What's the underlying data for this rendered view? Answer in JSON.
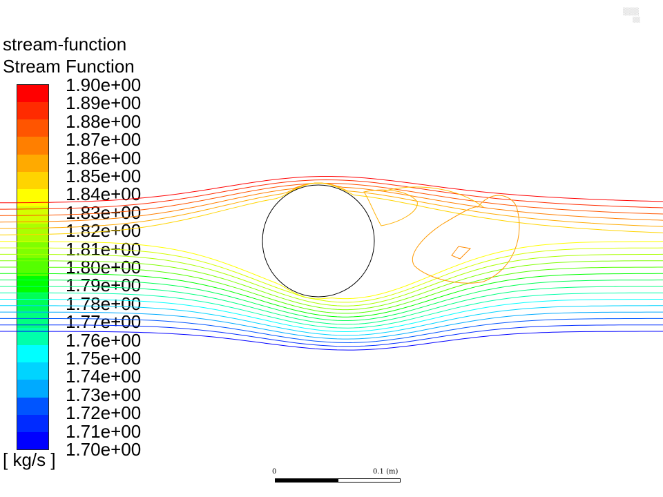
{
  "legend": {
    "variable": "stream-function",
    "title": "Stream Function",
    "unit": "[ kg/s ]",
    "tick_labels": [
      "1.90e+00",
      "1.89e+00",
      "1.88e+00",
      "1.87e+00",
      "1.86e+00",
      "1.85e+00",
      "1.84e+00",
      "1.83e+00",
      "1.82e+00",
      "1.81e+00",
      "1.80e+00",
      "1.79e+00",
      "1.78e+00",
      "1.77e+00",
      "1.76e+00",
      "1.75e+00",
      "1.74e+00",
      "1.73e+00",
      "1.72e+00",
      "1.71e+00",
      "1.70e+00"
    ],
    "colors": [
      "#ff0000",
      "#ff2b00",
      "#ff5500",
      "#ff7f00",
      "#ffaa00",
      "#ffd400",
      "#ffff00",
      "#d4ff00",
      "#aaff00",
      "#7fff00",
      "#55ff00",
      "#00ff00",
      "#00ff55",
      "#00ff7f",
      "#00ffaa",
      "#00ffff",
      "#00d4ff",
      "#00aaff",
      "#0055ff",
      "#002bff",
      "#0000ff"
    ]
  },
  "chart_data": {
    "type": "contour",
    "quantity": "Stream Function",
    "unit": "kg/s",
    "levels": [
      1.9,
      1.89,
      1.88,
      1.87,
      1.86,
      1.85,
      1.84,
      1.83,
      1.82,
      1.81,
      1.8,
      1.79,
      1.78,
      1.77,
      1.76,
      1.75,
      1.74,
      1.73,
      1.72,
      1.71,
      1.7
    ],
    "obstacle": "circle",
    "flow_direction": "left-to-right",
    "scale_bar": {
      "start": "0",
      "end": "0.1 (m)"
    }
  }
}
